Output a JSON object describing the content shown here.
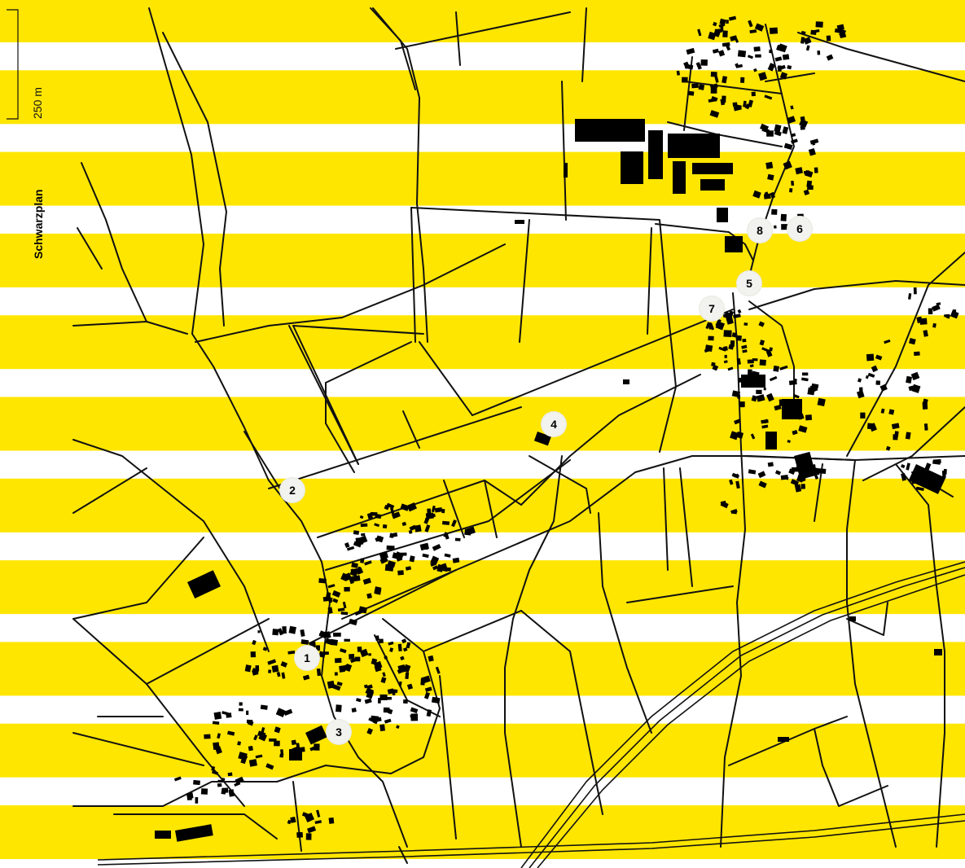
{
  "map": {
    "title": "Schwarzplan",
    "scale_bar_label": "250 m",
    "band_color": "#ffe600",
    "building_color": "#000000",
    "road_color": "#111111",
    "background_color": "#ffffff",
    "markers": [
      "1",
      "2",
      "3",
      "4",
      "5",
      "6",
      "7",
      "8"
    ]
  }
}
